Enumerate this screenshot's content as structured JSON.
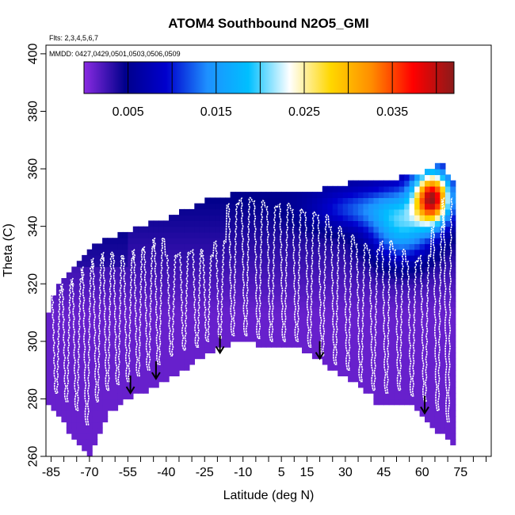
{
  "chart_data": {
    "type": "heatmap",
    "title": "ATOM4 Southbound N2O5_GMI",
    "flights_label": "Flts: 2,3,4,5,6,7",
    "dates_label": "MMDD: 0427,0429,0501,0503,0506,0509",
    "xlabel": "Latitude (deg N)",
    "ylabel": "Theta (C)",
    "xlim": [
      -87,
      87
    ],
    "ylim": [
      260,
      403
    ],
    "x_ticks": [
      -85,
      -70,
      -55,
      -40,
      -25,
      -10,
      5,
      15,
      30,
      45,
      60,
      75
    ],
    "x_tick_labels": [
      "-85",
      "-70",
      "-55",
      "-40",
      "-25",
      "-10",
      "5",
      "15",
      "30",
      "45",
      "60",
      "75"
    ],
    "x_minor_ticks": [
      -80,
      -75,
      -65,
      -60,
      -50,
      -45,
      -35,
      -30,
      -20,
      -15,
      -5,
      0,
      10,
      20,
      25,
      35,
      40,
      50,
      55,
      65,
      70,
      80,
      85
    ],
    "y_ticks": [
      260,
      280,
      300,
      320,
      340,
      360,
      380,
      400
    ],
    "y_tick_labels": [
      "260",
      "280",
      "300",
      "320",
      "340",
      "360",
      "380",
      "400"
    ],
    "colorbar": {
      "min": 0.0,
      "max": 0.042,
      "ticks": [
        0.005,
        0.015,
        0.025,
        0.035
      ],
      "tick_labels": [
        "0.005",
        "0.015",
        "0.025",
        "0.035"
      ],
      "colors": [
        "#8a2be2",
        "#00008b",
        "#0000cd",
        "#1e90ff",
        "#00bfff",
        "#ffffff",
        "#ffd700",
        "#ff8c00",
        "#ff0000",
        "#8b1a1a"
      ]
    },
    "lower_boundary": {
      "lat": [
        -87,
        -84,
        -80,
        -77,
        -73,
        -70,
        -67,
        -62,
        -58,
        -54,
        -50,
        -45,
        -40,
        -35,
        -30,
        -25,
        -20,
        -15,
        -10,
        -5,
        0,
        5,
        10,
        15,
        20,
        25,
        30,
        35,
        40,
        43,
        47,
        52,
        56,
        60,
        64,
        68,
        71
      ],
      "theta": [
        279,
        276,
        272,
        268,
        263,
        261,
        268,
        276,
        279,
        281,
        283,
        285,
        287,
        290,
        293,
        296,
        298,
        300,
        301,
        300,
        299,
        300,
        299,
        297,
        294,
        291,
        289,
        286,
        282,
        278,
        279,
        279,
        278,
        275,
        271,
        268,
        265
      ]
    },
    "upper_boundary": {
      "lat": [
        -87,
        -84,
        -80,
        -77,
        -73,
        -70,
        -65,
        -60,
        -55,
        -50,
        -45,
        -40,
        -35,
        -30,
        -25,
        -20,
        -15,
        -10,
        -5,
        0,
        5,
        10,
        15,
        20,
        25,
        30,
        35,
        40,
        45,
        50,
        55,
        58,
        60,
        63,
        65,
        67,
        69,
        71
      ],
      "theta": [
        305,
        315,
        322,
        325,
        328,
        332,
        334,
        336,
        337,
        339,
        341,
        342,
        344,
        346,
        348,
        349,
        350,
        351,
        350,
        351,
        352,
        352,
        352,
        352,
        353,
        354,
        355,
        356,
        356,
        356,
        357,
        358,
        358,
        359,
        360,
        362,
        360,
        355
      ]
    },
    "value_field_description": "N2O5 mixing ratio; mostly < 0.005 (violet/dark blue) at low theta, increasing to 0.02-0.04 near 340-360 K at 50-70N",
    "arrows": [
      {
        "lat": -54,
        "theta": 282
      },
      {
        "lat": -44,
        "theta": 287
      },
      {
        "lat": -19,
        "theta": 296
      },
      {
        "lat": 20,
        "theta": 294
      },
      {
        "lat": 61,
        "theta": 275
      }
    ],
    "profiles_center_lat": [
      -83,
      -79,
      -75,
      -71,
      -67,
      -63,
      -59,
      -55,
      -51,
      -47,
      -43,
      -38,
      -33,
      -28,
      -24,
      -19,
      -14,
      -9,
      -4,
      1,
      6,
      11,
      16,
      21,
      26,
      31,
      36,
      41,
      46,
      51,
      56,
      61,
      66,
      70
    ],
    "profiles_top_theta": [
      318,
      320,
      322,
      326,
      329,
      331,
      330,
      329,
      332,
      333,
      336,
      330,
      331,
      332,
      330,
      335,
      348,
      350,
      349,
      347,
      348,
      346,
      345,
      344,
      340,
      337,
      334,
      332,
      335,
      332,
      328,
      330,
      340,
      350
    ],
    "profiles_bottom_theta": [
      282,
      279,
      276,
      271,
      279,
      283,
      285,
      286,
      288,
      290,
      292,
      295,
      297,
      298,
      300,
      301,
      302,
      302,
      301,
      300,
      300,
      300,
      298,
      295,
      292,
      290,
      286,
      283,
      282,
      283,
      281,
      279,
      276,
      272
    ]
  }
}
